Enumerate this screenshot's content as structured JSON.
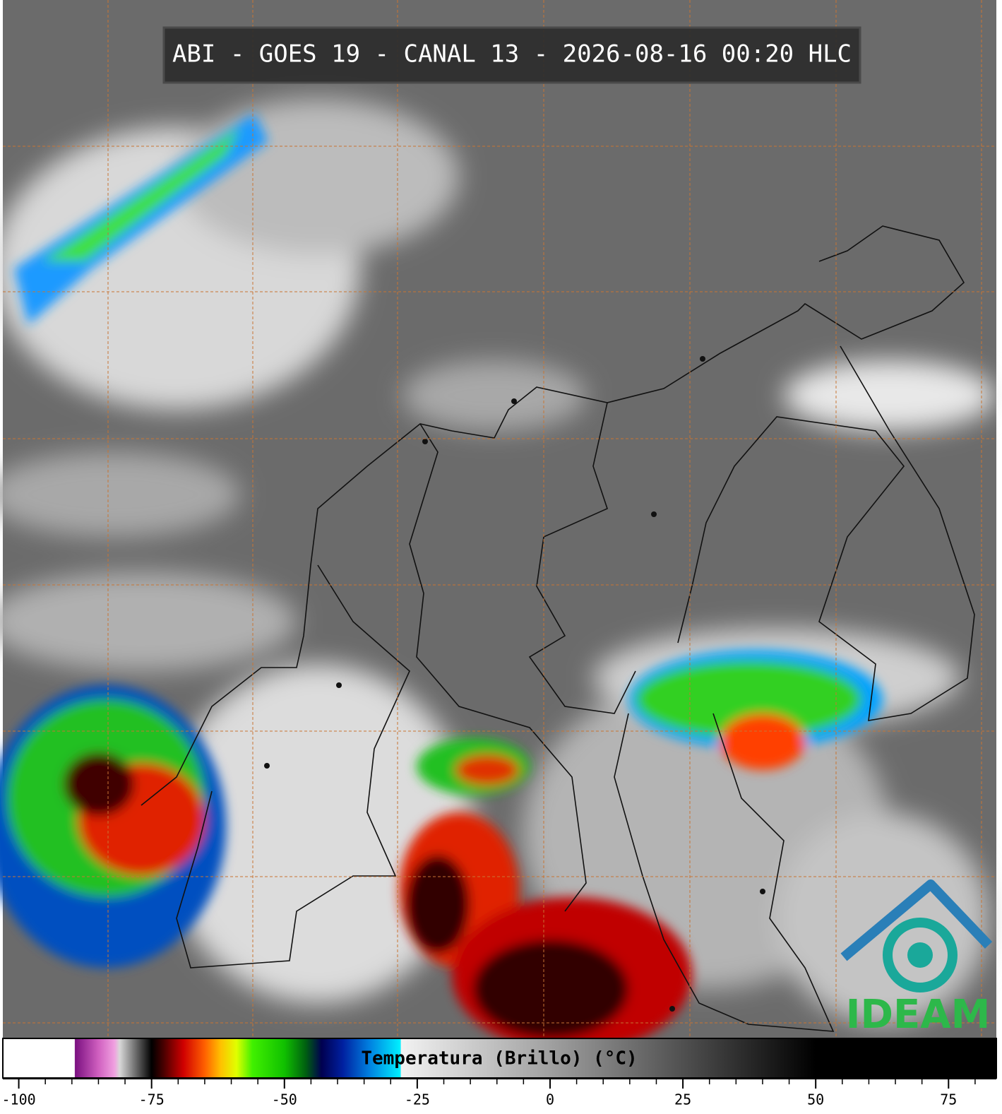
{
  "title": "ABI - GOES 19 - CANAL 13 - 2026-08-16 00:20 HLC",
  "logo": "IDEAM",
  "colorbar": {
    "label": "Temperatura (Brillo) (°C)",
    "xlim": [
      -103,
      84
    ],
    "xticks": [
      -100,
      -75,
      -50,
      -25,
      0,
      25,
      50,
      75
    ],
    "minor_ticks": [
      -95,
      -90,
      -85,
      -80,
      -70,
      -65,
      -60,
      -55,
      -45,
      -40,
      -35,
      -30,
      -20,
      -15,
      -10,
      -5,
      5,
      10,
      15,
      20,
      30,
      35,
      40,
      45,
      55,
      60,
      65,
      70,
      80
    ],
    "colormap": [
      {
        "value": -103,
        "color": "#ffffff"
      },
      {
        "value": -89.5,
        "color": "#ffffff"
      },
      {
        "value": -89.4,
        "color": "#7a1080"
      },
      {
        "value": -85,
        "color": "#d060c0"
      },
      {
        "value": -82,
        "color": "#f0a0e0"
      },
      {
        "value": -81,
        "color": "#d8d8d8"
      },
      {
        "value": -75,
        "color": "#000000"
      },
      {
        "value": -73,
        "color": "#400000"
      },
      {
        "value": -69,
        "color": "#d00000"
      },
      {
        "value": -65,
        "color": "#ff6000"
      },
      {
        "value": -62,
        "color": "#ffc000"
      },
      {
        "value": -59,
        "color": "#e0ff00"
      },
      {
        "value": -56,
        "color": "#40f000"
      },
      {
        "value": -50,
        "color": "#10c000"
      },
      {
        "value": -46,
        "color": "#006010"
      },
      {
        "value": -43,
        "color": "#000050"
      },
      {
        "value": -39,
        "color": "#0020a0"
      },
      {
        "value": -34,
        "color": "#0080e0"
      },
      {
        "value": -28.2,
        "color": "#00f0ff"
      },
      {
        "value": -28,
        "color": "#f2f2f2"
      },
      {
        "value": 0,
        "color": "#a0a0a0"
      },
      {
        "value": 25,
        "color": "#505050"
      },
      {
        "value": 50,
        "color": "#000000"
      },
      {
        "value": 84,
        "color": "#000000"
      }
    ]
  }
}
